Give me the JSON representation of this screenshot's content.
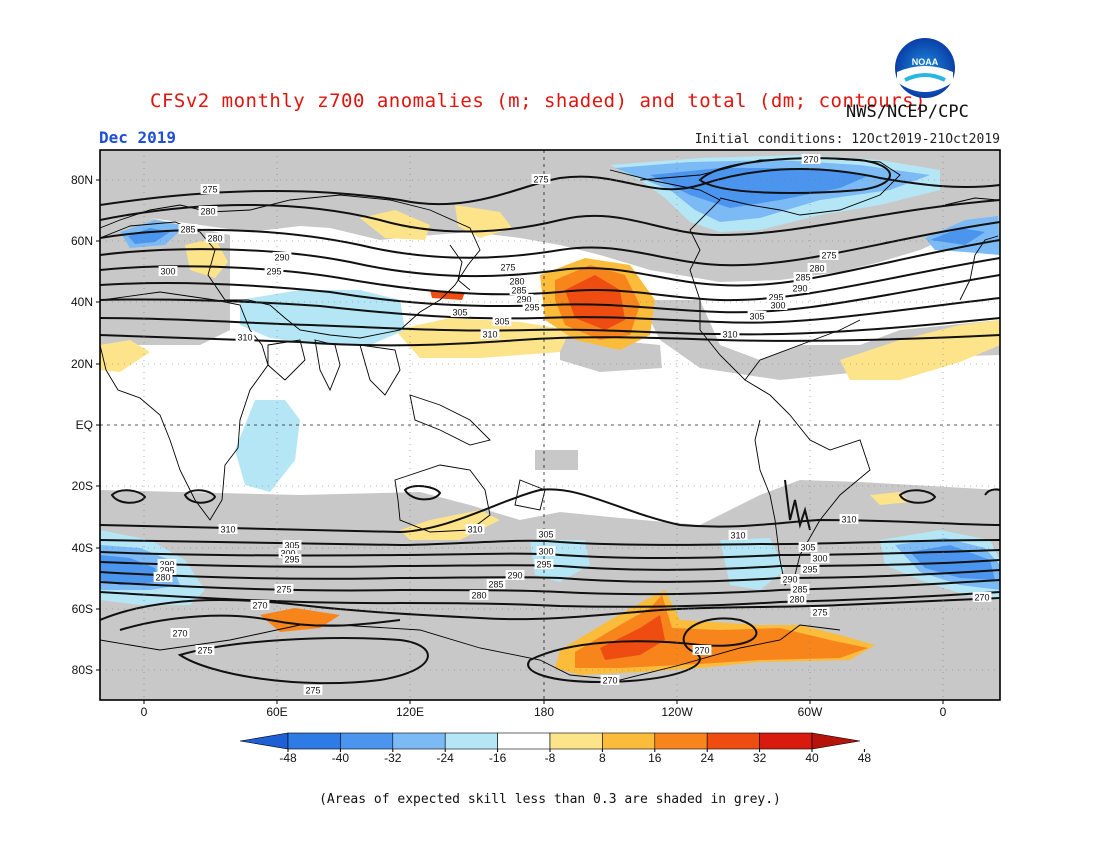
{
  "header": {
    "title": "CFSv2 monthly z700 anomalies (m; shaded) and total (dm; contours)",
    "agency": "NWS/NCEP/CPC",
    "month": "Dec 2019",
    "initial_conditions": "Initial conditions: 12Oct2019-21Oct2019"
  },
  "logo": {
    "text": "NOAA"
  },
  "axes": {
    "lat_labels": [
      "80N",
      "60N",
      "40N",
      "20N",
      "EQ",
      "20S",
      "40S",
      "60S",
      "80S"
    ],
    "lon_labels": [
      "0",
      "60E",
      "120E",
      "180",
      "120W",
      "60W",
      "0"
    ]
  },
  "contour_labels": [
    "270",
    "275",
    "280",
    "285",
    "290",
    "295",
    "300",
    "305",
    "310"
  ],
  "colorbar": {
    "labels": [
      "-48",
      "-40",
      "-32",
      "-24",
      "-16",
      "-8",
      "8",
      "16",
      "24",
      "32",
      "40",
      "48"
    ],
    "colors": [
      "#1f5fd6",
      "#2e7be6",
      "#4b95ee",
      "#7cbaf5",
      "#b4e6f5",
      "#ffffff",
      "#fde48a",
      "#fbbc3c",
      "#f7851c",
      "#ef4c12",
      "#d91a0e",
      "#b5140c"
    ]
  },
  "map_colors": {
    "skill_grey": "#c8c8c8",
    "land_outline": "#000000",
    "contour": "#111111"
  },
  "footnote": "(Areas of expected skill less than 0.3 are shaded in grey.)"
}
